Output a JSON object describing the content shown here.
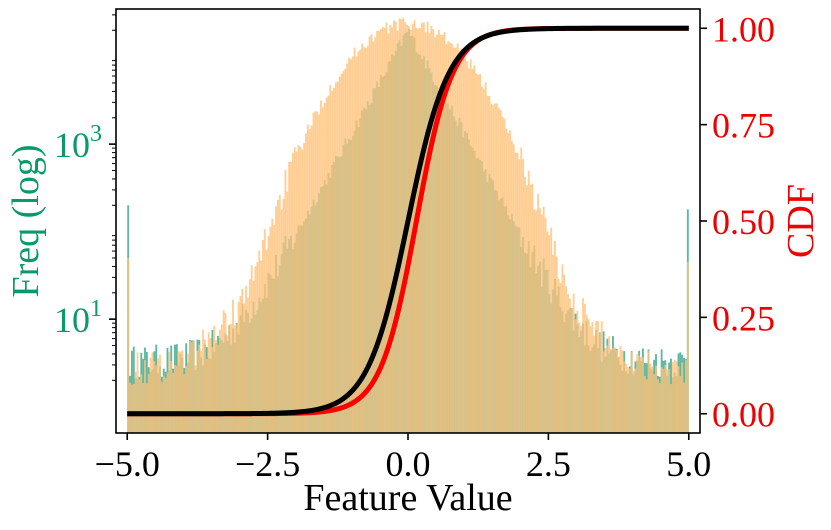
{
  "chart_data": {
    "type": "bar",
    "xlabel": "Feature Value",
    "ylabel_left": "Freq (log)",
    "ylabel_right": "CDF",
    "xlim": [
      -5.2,
      5.2
    ],
    "ylim_left": [
      0.5,
      35000
    ],
    "ylim_right": [
      -0.05,
      1.05
    ],
    "left_scale": "log",
    "grid": false,
    "x_ticks": [
      -5.0,
      -2.5,
      0.0,
      2.5,
      5.0
    ],
    "x_tick_labels": [
      "−5.0",
      "−2.5",
      "0.0",
      "2.5",
      "5.0"
    ],
    "left_ticks": [
      {
        "value": 10,
        "base": "10",
        "exp": "1"
      },
      {
        "value": 1000,
        "base": "10",
        "exp": "3"
      }
    ],
    "right_ticks": [
      0.0,
      0.25,
      0.5,
      0.75,
      1.0
    ],
    "right_tick_labels": [
      "0.00",
      "0.25",
      "0.50",
      "0.75",
      "1.00"
    ],
    "histograms": [
      {
        "color": "#1a9a7a",
        "opacity": 0.7,
        "bin_range": [
          -5.0,
          5.0
        ],
        "bin_count": 300,
        "peak": 20000,
        "center": 0.0,
        "laplace_scale": 0.37,
        "floor": 3.2,
        "edge_values": [
          200,
          180
        ]
      },
      {
        "color": "#ffc27a",
        "opacity": 0.8,
        "bin_range": [
          -5.0,
          5.0
        ],
        "bin_count": 300,
        "peak": 24000,
        "center": 0.0,
        "gauss_sigma": 0.75,
        "laplace_scale": 0.4,
        "floor": 2.6,
        "edge_values": [
          50,
          45
        ]
      }
    ],
    "cdf_series": [
      {
        "color": "#ff0000",
        "mu": 0.15,
        "scale": 0.32,
        "width": 5
      },
      {
        "color": "#000000",
        "mu": 0.0,
        "scale": 0.36,
        "width": 5
      }
    ],
    "cdf_x_range": [
      -5.0,
      5.0
    ],
    "colors": {
      "left_axis": "#0a9a6a",
      "right_axis": "#ee0000",
      "frame": "#000000"
    }
  }
}
